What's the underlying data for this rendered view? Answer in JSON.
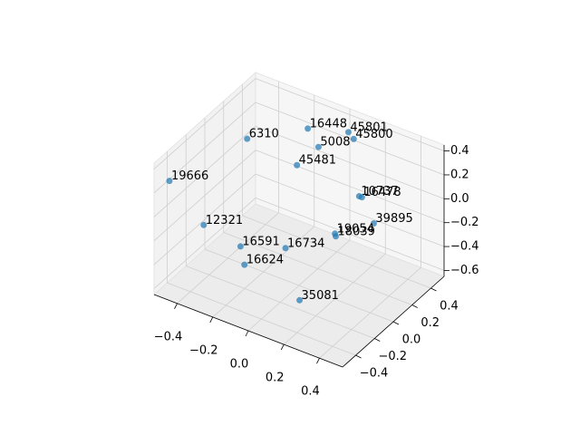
{
  "chart_data": {
    "type": "scatter3d",
    "xlim": [
      -0.53,
      0.53
    ],
    "ylim": [
      -0.54,
      0.54
    ],
    "zlim": [
      -0.65,
      0.45
    ],
    "xticks": [
      {
        "value": -0.4,
        "label": "−0.4"
      },
      {
        "value": -0.2,
        "label": "−0.2"
      },
      {
        "value": 0,
        "label": "0.0"
      },
      {
        "value": 0.2,
        "label": "0.2"
      },
      {
        "value": 0.4,
        "label": "0.4"
      }
    ],
    "yticks": [
      {
        "value": -0.4,
        "label": "−0.4"
      },
      {
        "value": -0.2,
        "label": "−0.2"
      },
      {
        "value": 0,
        "label": "0.0"
      },
      {
        "value": 0.2,
        "label": "0.2"
      },
      {
        "value": 0.4,
        "label": "0.4"
      }
    ],
    "zticks": [
      {
        "value": -0.6,
        "label": "−0.6"
      },
      {
        "value": -0.4,
        "label": "−0.4"
      },
      {
        "value": -0.2,
        "label": "−0.2"
      },
      {
        "value": 0,
        "label": "0.0"
      },
      {
        "value": 0.2,
        "label": "0.2"
      },
      {
        "value": 0.4,
        "label": "0.4"
      }
    ],
    "grid": true,
    "series": [
      {
        "color": "#1f77b4",
        "point_labels": [
          "19666",
          "6310",
          "16448",
          "45801",
          "45800",
          "5008",
          "45481",
          "10737",
          "16478",
          "12321",
          "39895",
          "19054",
          "18039",
          "16591",
          "16734",
          "16624",
          "35081"
        ],
        "x": [
          -0.47,
          -0.35,
          -0.12,
          0.05,
          0.08,
          -0.06,
          -0.07,
          0.28,
          0.29,
          -0.42,
          0.42,
          0.26,
          0.27,
          -0.16,
          0.04,
          -0.08,
          0.23
        ],
        "y": [
          -0.49,
          0.11,
          0.32,
          0.43,
          0.43,
          0.32,
          0.11,
          0.11,
          0.12,
          -0.22,
          0,
          -0.11,
          -0.12,
          -0.32,
          -0.22,
          -0.43,
          -0.43
        ],
        "z": [
          0.3,
          0.3,
          0.37,
          0.36,
          0.32,
          0.25,
          0.24,
          0.18,
          0.17,
          -0.23,
          0.11,
          0.01,
          0,
          -0.19,
          -0.16,
          -0.22,
          -0.34
        ]
      }
    ]
  }
}
